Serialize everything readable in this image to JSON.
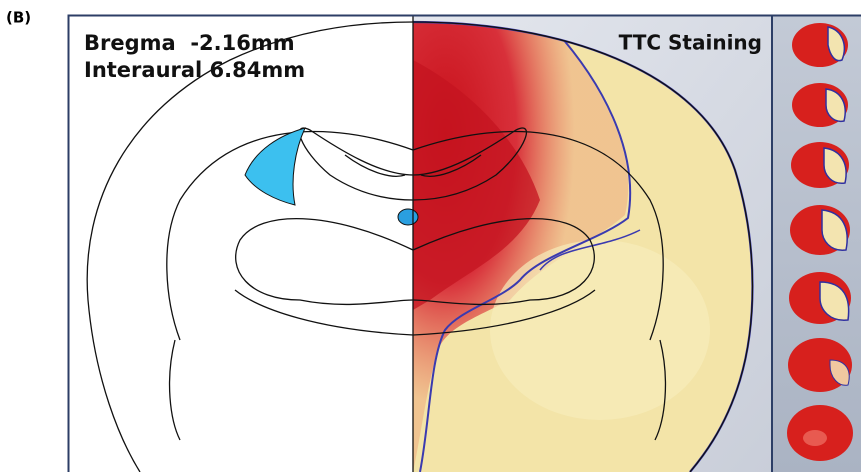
{
  "panel_label": "(B)",
  "atlas": {
    "bregma": "Bregma  -2.16mm",
    "interaural": "Interaural 6.84mm"
  },
  "photo": {
    "label": "TTC Staining"
  }
}
